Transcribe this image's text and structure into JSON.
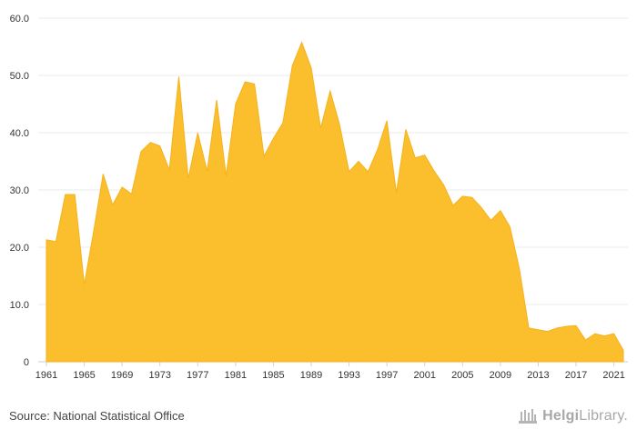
{
  "chart_data": {
    "type": "area",
    "color": "#FBBF2D",
    "y_ticks": [
      "0",
      "10.0",
      "20.0",
      "30.0",
      "40.0",
      "50.0",
      "60.0"
    ],
    "ylim": [
      0,
      60
    ],
    "x_tick_labels": [
      "1961",
      "1965",
      "1969",
      "1973",
      "1977",
      "1981",
      "1985",
      "1989",
      "1993",
      "1997",
      "2001",
      "2005",
      "2009",
      "2013",
      "2017",
      "2021"
    ],
    "grid": true,
    "legend": "none",
    "x": [
      1961,
      1962,
      1963,
      1964,
      1965,
      1966,
      1967,
      1968,
      1969,
      1970,
      1971,
      1972,
      1973,
      1974,
      1975,
      1976,
      1977,
      1978,
      1979,
      1980,
      1981,
      1982,
      1983,
      1984,
      1985,
      1986,
      1987,
      1988,
      1989,
      1990,
      1991,
      1992,
      1993,
      1994,
      1995,
      1996,
      1997,
      1998,
      1999,
      2000,
      2001,
      2002,
      2003,
      2004,
      2005,
      2006,
      2007,
      2008,
      2009,
      2010,
      2011,
      2012,
      2013,
      2014,
      2015,
      2016,
      2017,
      2018,
      2019,
      2020,
      2021,
      2022
    ],
    "values": [
      21.3,
      21.0,
      29.2,
      29.2,
      13.5,
      22.8,
      32.8,
      27.4,
      30.5,
      29.3,
      36.7,
      38.3,
      37.7,
      33.5,
      49.8,
      32.0,
      40.0,
      33.3,
      45.7,
      32.5,
      45.0,
      48.9,
      48.5,
      35.9,
      39.0,
      41.7,
      51.7,
      55.8,
      51.3,
      40.8,
      47.3,
      41.4,
      33.2,
      35.0,
      33.2,
      37.0,
      42.1,
      29.5,
      40.6,
      35.6,
      36.1,
      33.3,
      30.9,
      27.3,
      28.9,
      28.7,
      26.9,
      24.7,
      26.4,
      23.6,
      16.3,
      5.9,
      5.6,
      5.3,
      5.9,
      6.2,
      6.3,
      3.8,
      4.9,
      4.5,
      4.9,
      2.0
    ]
  },
  "footer": {
    "source": "Source: National Statistical Office",
    "brand_left": "Helgi",
    "brand_right": "Library."
  }
}
